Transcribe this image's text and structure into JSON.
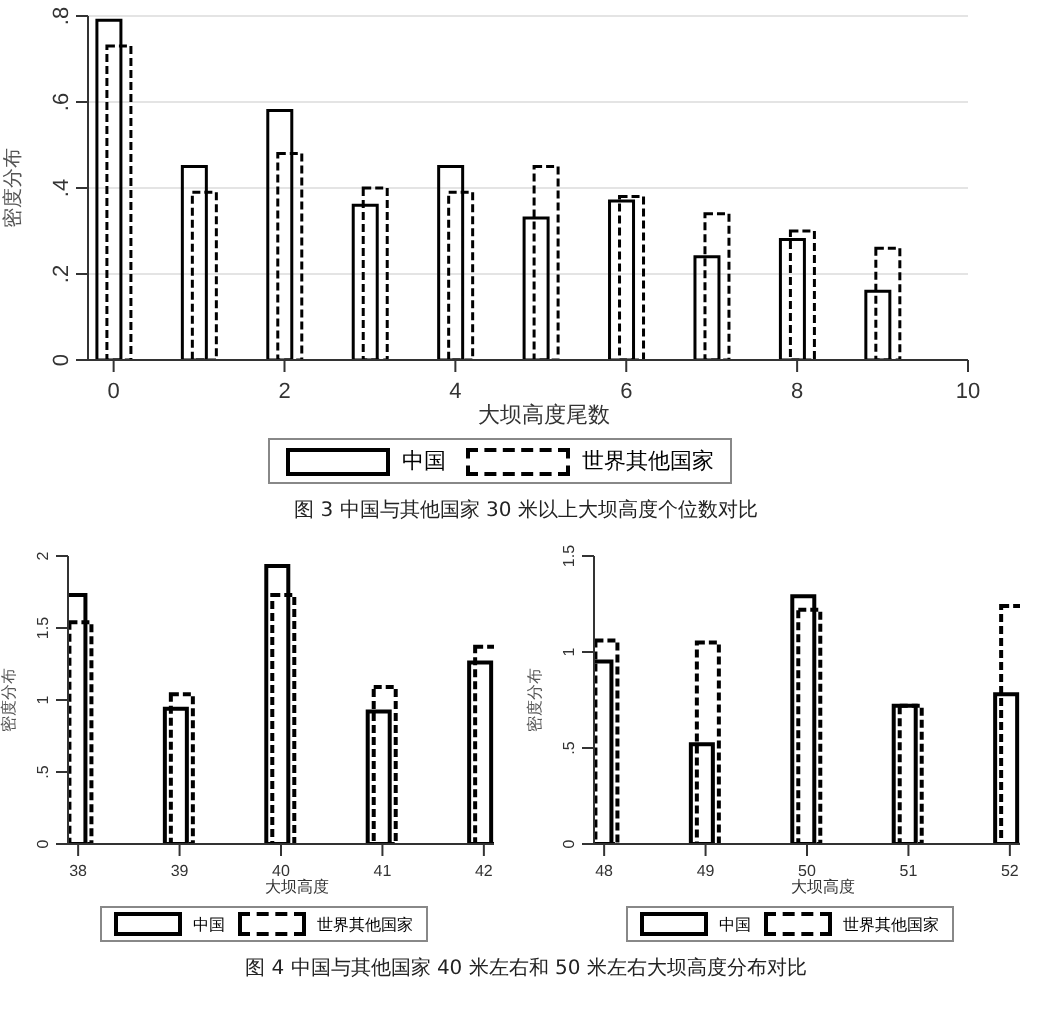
{
  "chart_data": [
    {
      "type": "bar",
      "x": [
        0,
        1,
        2,
        3,
        4,
        5,
        6,
        7,
        8,
        9
      ],
      "xlabel": "大坝高度尾数",
      "ylabel": "密度分布",
      "xlim": [
        -0.3,
        10
      ],
      "xticks": [
        0,
        2,
        4,
        6,
        8,
        10
      ],
      "ylim": [
        0,
        0.8
      ],
      "yticks": [
        0,
        {
          "value": 0.2,
          "label": ".2"
        },
        {
          "value": 0.4,
          "label": ".4"
        },
        {
          "value": 0.6,
          "label": ".6"
        },
        {
          "value": 0.8,
          "label": ".8"
        }
      ],
      "grid": "y",
      "legend": "bottom",
      "annotations": [
        "图 3 中国与其他国家 30 米以上大坝高度个位数对比"
      ],
      "series": [
        {
          "name": "中国",
          "color": "#000000",
          "line_style": "solid",
          "values": [
            0.79,
            0.45,
            0.58,
            0.36,
            0.45,
            0.33,
            0.37,
            0.24,
            0.28,
            0.16
          ]
        },
        {
          "name": "世界其他国家",
          "color": "#000000",
          "line_style": "dashed",
          "values": [
            0.73,
            0.39,
            0.48,
            0.4,
            0.39,
            0.45,
            0.38,
            0.34,
            0.3,
            0.26
          ]
        }
      ]
    },
    {
      "type": "bar",
      "x": [
        38,
        39,
        40,
        41,
        42
      ],
      "xlabel": "大坝高度",
      "ylabel": "密度分布",
      "xlim": [
        37.9,
        42.1
      ],
      "xticks": [
        38,
        39,
        40,
        41,
        42
      ],
      "ylim": [
        0,
        2
      ],
      "yticks": [
        0,
        {
          "value": 0.5,
          "label": ".5"
        },
        1,
        1.5,
        2
      ],
      "legend": "bottom",
      "annotations": [
        "图 4 中国与其他国家 40 米左右和 50 米左右大坝高度分布对比"
      ],
      "series": [
        {
          "name": "中国",
          "color": "#000000",
          "line_style": "solid",
          "values": [
            1.73,
            0.94,
            1.93,
            0.92,
            1.26
          ]
        },
        {
          "name": "世界其他国家",
          "color": "#000000",
          "line_style": "dashed",
          "values": [
            1.54,
            1.04,
            1.73,
            1.09,
            1.37
          ]
        }
      ]
    },
    {
      "type": "bar",
      "x": [
        48,
        49,
        50,
        51,
        52
      ],
      "xlabel": "大坝高度",
      "ylabel": "密度分布",
      "xlim": [
        47.9,
        52.1
      ],
      "xticks": [
        48,
        49,
        50,
        51,
        52
      ],
      "ylim": [
        0,
        1.5
      ],
      "yticks": [
        0,
        {
          "value": 0.5,
          "label": ".5"
        },
        1,
        1.5
      ],
      "legend": "bottom",
      "series": [
        {
          "name": "中国",
          "color": "#000000",
          "line_style": "solid",
          "values": [
            0.95,
            0.52,
            1.29,
            0.72,
            0.78
          ]
        },
        {
          "name": "世界其他国家",
          "color": "#000000",
          "line_style": "dashed",
          "values": [
            1.06,
            1.05,
            1.22,
            0.72,
            1.24
          ]
        }
      ]
    }
  ]
}
